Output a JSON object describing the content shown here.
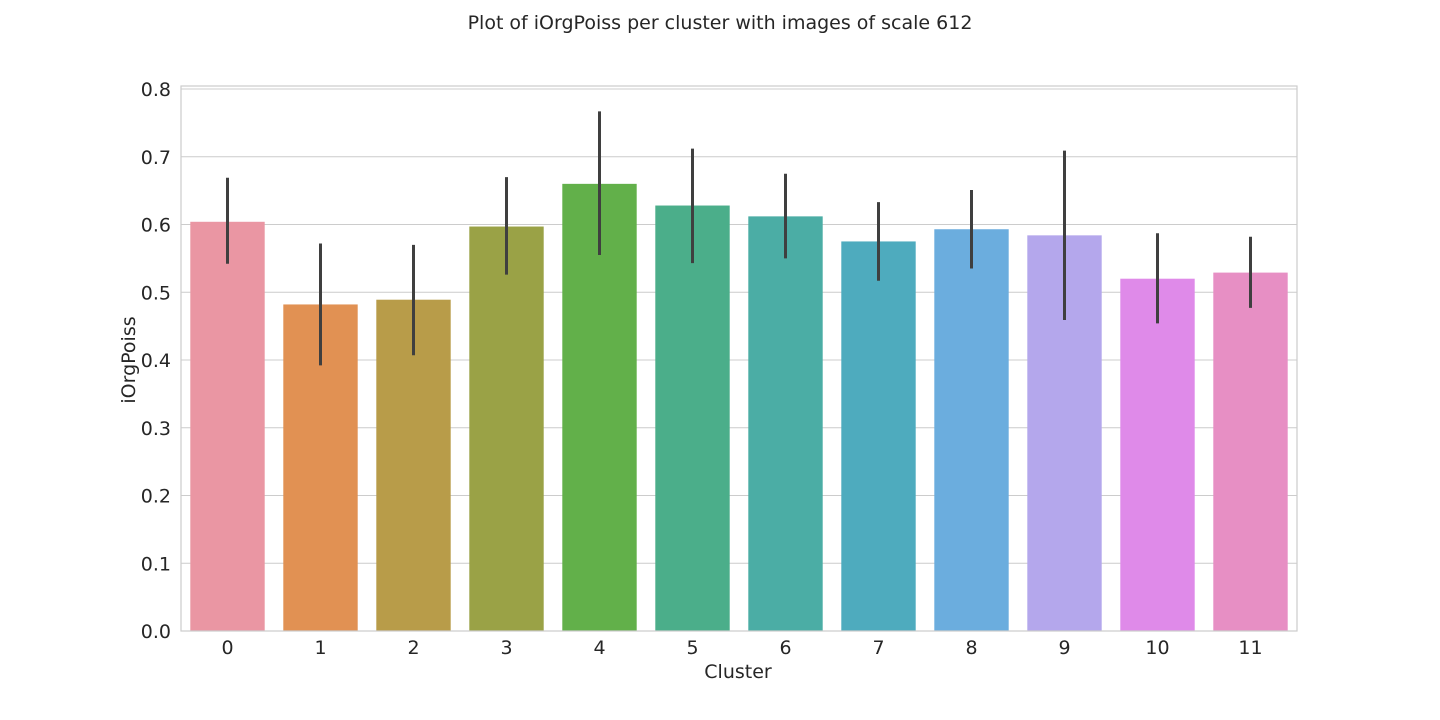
{
  "chart_data": {
    "type": "bar",
    "title": "Plot of iOrgPoiss per cluster with images of scale 612",
    "xlabel": "Cluster",
    "ylabel": "iOrgPoiss",
    "categories": [
      "0",
      "1",
      "2",
      "3",
      "4",
      "5",
      "6",
      "7",
      "8",
      "9",
      "10",
      "11"
    ],
    "values": [
      0.604,
      0.482,
      0.489,
      0.597,
      0.66,
      0.628,
      0.612,
      0.575,
      0.593,
      0.584,
      0.52,
      0.529
    ],
    "error_low": [
      0.542,
      0.392,
      0.407,
      0.526,
      0.555,
      0.543,
      0.55,
      0.517,
      0.535,
      0.459,
      0.454,
      0.477
    ],
    "error_high": [
      0.669,
      0.572,
      0.57,
      0.67,
      0.767,
      0.712,
      0.675,
      0.633,
      0.651,
      0.709,
      0.587,
      0.582
    ],
    "colors": [
      "#ea96a3",
      "#e19153",
      "#b89c49",
      "#9aa246",
      "#62b04a",
      "#4bae8a",
      "#4bada5",
      "#4eabbe",
      "#6badde",
      "#b4a7ec",
      "#df8ae9",
      "#e78fc4"
    ],
    "ylim": [
      0,
      0.8
    ],
    "yticks": [
      0.0,
      0.1,
      0.2,
      0.3,
      0.4,
      0.5,
      0.6,
      0.7,
      0.8
    ],
    "ytick_labels": [
      "0.0",
      "0.1",
      "0.2",
      "0.3",
      "0.4",
      "0.5",
      "0.6",
      "0.7",
      "0.8"
    ],
    "grid": "horizontal",
    "style": "seaborn-whitegrid"
  }
}
